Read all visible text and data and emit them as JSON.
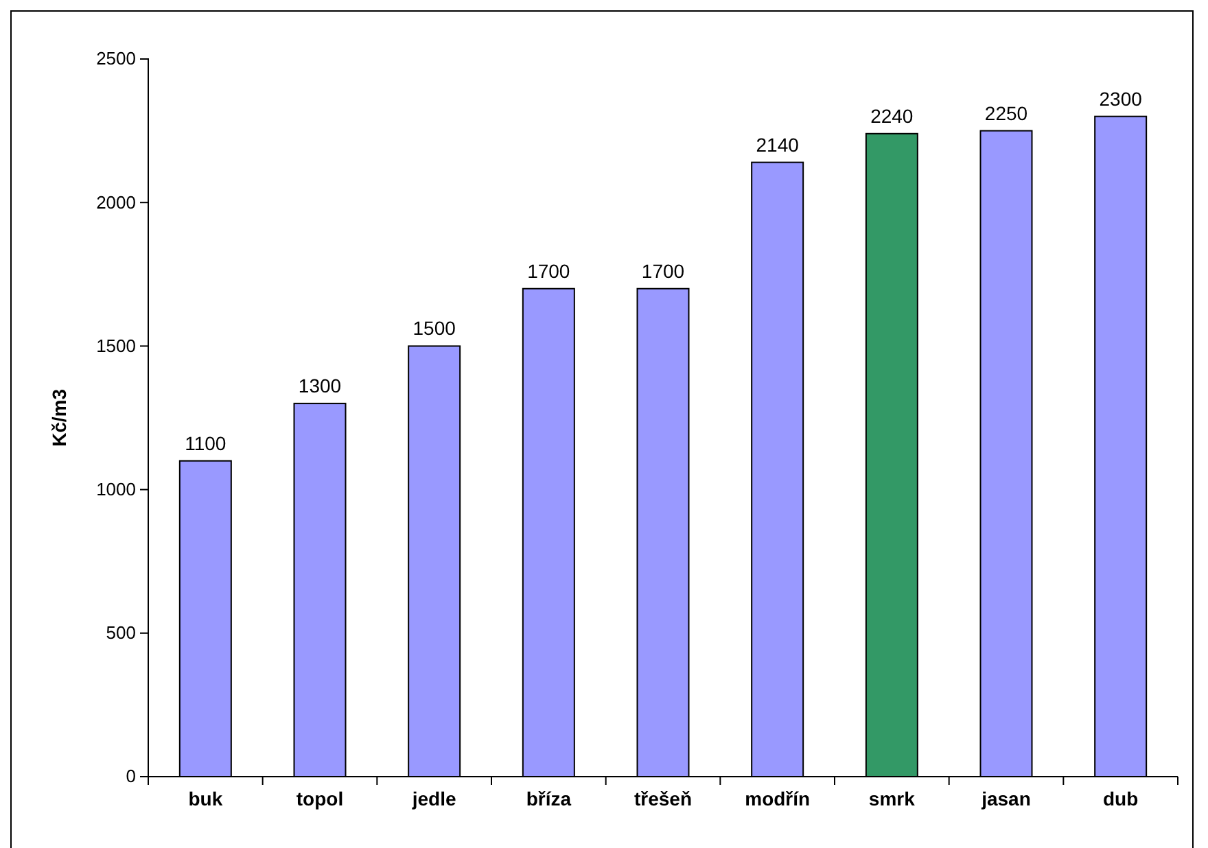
{
  "chart_data": {
    "type": "bar",
    "ylabel": "Kč/m3",
    "categories": [
      "buk",
      "topol",
      "jedle",
      "bříza",
      "třešeň",
      "modřín",
      "smrk",
      "jasan",
      "dub"
    ],
    "values": [
      1100,
      1300,
      1500,
      1700,
      1700,
      2140,
      2240,
      2250,
      2300
    ],
    "colors": [
      "#9999ff",
      "#9999ff",
      "#9999ff",
      "#9999ff",
      "#9999ff",
      "#9999ff",
      "#339966",
      "#9999ff",
      "#9999ff"
    ],
    "ylim": [
      0,
      2500
    ],
    "yticks": [
      0,
      500,
      1000,
      1500,
      2000,
      2500
    ],
    "data_labels": true
  }
}
